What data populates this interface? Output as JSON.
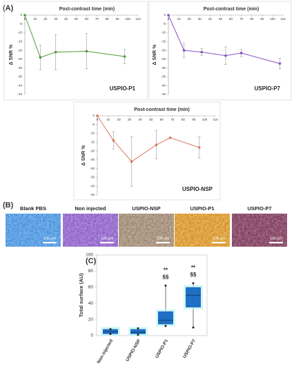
{
  "panels": [
    "(A)",
    "(B)",
    "(C)"
  ],
  "chart_data": [
    {
      "type": "line",
      "title": "Post-contrast time (min)",
      "y_label": "Δ SNR %",
      "xlim": [
        0,
        110
      ],
      "xticks": [
        0,
        10,
        20,
        30,
        40,
        50,
        60,
        70,
        80,
        90,
        100,
        110
      ],
      "ylim": [
        -45,
        0
      ],
      "yticks": [
        0,
        -5,
        -10,
        -15,
        -20,
        -25,
        -30,
        -35,
        -40,
        -45
      ],
      "x": [
        0,
        15,
        30,
        60,
        97
      ],
      "series": [
        {
          "name": "USPIO-P1",
          "color": "#4f9a3a",
          "values": [
            0,
            -24,
            -21,
            -20.5,
            -23.5
          ],
          "errors": [
            0,
            7,
            10,
            10,
            4
          ]
        }
      ]
    },
    {
      "type": "line",
      "title": "Post-contrast time (min)",
      "y_label": "Δ SNR %",
      "xlim": [
        0,
        110
      ],
      "xticks": [
        0,
        10,
        20,
        30,
        40,
        50,
        60,
        70,
        80,
        90,
        100,
        110
      ],
      "ylim": [
        -45,
        0
      ],
      "yticks": [
        0,
        -5,
        -10,
        -15,
        -20,
        -25,
        -30,
        -35,
        -40,
        -45
      ],
      "x": [
        0,
        15,
        32,
        55,
        70,
        107
      ],
      "series": [
        {
          "name": "USPIO-P7",
          "color": "#8a4fc4",
          "values": [
            0,
            -20,
            -21,
            -23,
            -21.5,
            -27.5
          ],
          "errors": [
            0,
            4,
            2,
            5,
            2,
            3
          ]
        }
      ]
    },
    {
      "type": "line",
      "title": "Post-contrast time (min)",
      "y_label": "Δ SNR %",
      "xlim": [
        0,
        110
      ],
      "xticks": [
        0,
        10,
        20,
        30,
        40,
        50,
        60,
        70,
        80,
        90,
        100,
        110
      ],
      "ylim": [
        -45,
        0
      ],
      "yticks": [
        0,
        -5,
        -10,
        -15,
        -20,
        -25,
        -30,
        -35,
        -40,
        -45
      ],
      "x": [
        0,
        15,
        32,
        55,
        68,
        95
      ],
      "series": [
        {
          "name": "USPIO-NSP",
          "color": "#d9785a",
          "values": [
            0,
            -14,
            -26,
            -16.5,
            -12.5,
            -18
          ],
          "errors": [
            0,
            5,
            14,
            8,
            0,
            6
          ]
        }
      ]
    },
    {
      "type": "box",
      "y_label": "Total surface (AU)",
      "color": "#1f6fc4",
      "ylim": [
        0,
        100
      ],
      "yticks": [
        0,
        20,
        40,
        60,
        80,
        100
      ],
      "categories": [
        "Non-injected",
        "USPIO-NSP",
        "USPIO-P1",
        "USPIO-P7"
      ],
      "boxes": [
        {
          "min": 2,
          "q1": 2,
          "median": 5,
          "q3": 8,
          "max": 8
        },
        {
          "min": 1,
          "q1": 2,
          "median": 4,
          "q3": 8,
          "max": 9
        },
        {
          "min": 12,
          "q1": 14,
          "median": 19,
          "q3": 30,
          "max": 62
        },
        {
          "min": 10,
          "q1": 35,
          "median": 50,
          "q3": 60,
          "max": 65
        }
      ],
      "significance": [
        null,
        null,
        [
          "**",
          "§§"
        ],
        [
          "**",
          "§§"
        ]
      ]
    }
  ],
  "images": [
    {
      "label": "Blank PBS",
      "scale_bar": "100 µm",
      "color": "#4a8fd6"
    },
    {
      "label": "Non injected",
      "scale_bar": "100 µm",
      "color": "#8a5fc0"
    },
    {
      "label": "USPIO-NSP",
      "scale_bar": "100 µm",
      "color": "#9a8470"
    },
    {
      "label": "USPIO-P1",
      "scale_bar": "100 µm",
      "color": "#d0902a"
    },
    {
      "label": "USPIO-P7",
      "scale_bar": "100 µm",
      "color": "#7a3a5a"
    }
  ]
}
